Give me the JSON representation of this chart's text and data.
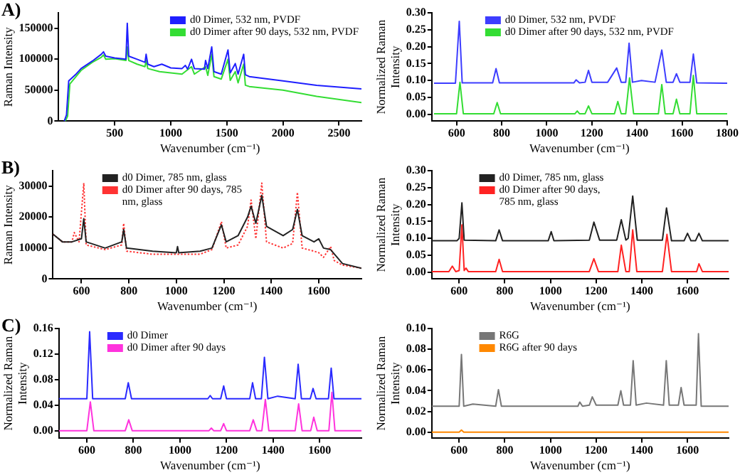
{
  "chart_data": [
    {
      "type": "line",
      "annotations": [
        "A)"
      ],
      "xlabel": "Wavenumber (cm⁻¹)",
      "ylabel": "Raman Intensity",
      "xlim": [
        0,
        2700
      ],
      "xticks": [
        500,
        1000,
        1500,
        2000,
        2500
      ],
      "ylim": [
        0,
        175000
      ],
      "yticks": [
        0,
        50000,
        100000,
        150000
      ],
      "legend": "top right",
      "marker": "none",
      "series": [
        {
          "name": "d0 Dimer, 532 nm, PVDF",
          "color": "#1f1fff",
          "x": [
            50,
            70,
            90,
            150,
            200,
            300,
            380,
            400,
            420,
            500,
            600,
            612,
            625,
            700,
            770,
            780,
            795,
            850,
            920,
            1000,
            1100,
            1130,
            1150,
            1185,
            1210,
            1300,
            1310,
            1330,
            1365,
            1385,
            1450,
            1510,
            1530,
            1575,
            1600,
            1650,
            1665,
            1700,
            2000,
            2300,
            2700
          ],
          "values": [
            0,
            10000,
            65000,
            75000,
            85000,
            97000,
            108000,
            112000,
            105000,
            102000,
            100000,
            158000,
            105000,
            100000,
            95000,
            108000,
            92000,
            88000,
            92000,
            86000,
            85000,
            90000,
            84000,
            100000,
            85000,
            84000,
            98000,
            85000,
            120000,
            80000,
            76000,
            115000,
            78000,
            93000,
            76000,
            108000,
            75000,
            72000,
            65000,
            58000,
            52000
          ]
        },
        {
          "name": "d0 Dimer after 90 days, 532 nm, PVDF",
          "color": "#33dd33",
          "x": [
            60,
            80,
            100,
            150,
            200,
            300,
            380,
            400,
            420,
            500,
            600,
            612,
            625,
            700,
            770,
            780,
            795,
            900,
            1000,
            1100,
            1185,
            1210,
            1310,
            1330,
            1365,
            1385,
            1450,
            1510,
            1530,
            1575,
            1600,
            1650,
            1665,
            1700,
            2000,
            2300,
            2700
          ],
          "values": [
            0,
            8000,
            60000,
            71000,
            82000,
            95000,
            103000,
            107000,
            100000,
            101000,
            98000,
            120000,
            98000,
            92000,
            88000,
            98000,
            85000,
            80000,
            78000,
            76000,
            88000,
            76000,
            88000,
            74000,
            108000,
            72000,
            68000,
            100000,
            66000,
            80000,
            62000,
            92000,
            58000,
            56000,
            50000,
            40000,
            30000
          ]
        }
      ]
    },
    {
      "type": "line",
      "xlabel": "Wavenumber (cm⁻¹)",
      "ylabel": "Normalized Raman Intensity",
      "xlim": [
        490,
        1800
      ],
      "xticks": [
        600,
        800,
        1000,
        1200,
        1400,
        1600,
        1800
      ],
      "ylim": [
        -0.02,
        0.3
      ],
      "yticks": [
        {
          "value": 0,
          "label": "0.00"
        },
        {
          "value": 0.05,
          "label": "0.05"
        },
        {
          "value": 0.1,
          "label": "0.10"
        },
        {
          "value": 0.15,
          "label": "0.15"
        },
        {
          "value": 0.2,
          "label": "0.20"
        },
        {
          "value": 0.25,
          "label": "0.25"
        },
        {
          "value": 0.3,
          "label": "0.30"
        }
      ],
      "legend": "top",
      "marker": "none",
      "series": [
        {
          "name": "d0 Dimer, 532 nm, PVDF",
          "color": "#3d3dff",
          "x": [
            500,
            595,
            612,
            625,
            760,
            775,
            790,
            1120,
            1130,
            1145,
            1170,
            1185,
            1200,
            1270,
            1310,
            1330,
            1350,
            1365,
            1380,
            1420,
            1480,
            1510,
            1530,
            1560,
            1575,
            1590,
            1635,
            1650,
            1665,
            1800
          ],
          "values": [
            0.092,
            0.092,
            0.275,
            0.093,
            0.093,
            0.135,
            0.093,
            0.093,
            0.102,
            0.093,
            0.095,
            0.13,
            0.095,
            0.095,
            0.137,
            0.095,
            0.095,
            0.21,
            0.095,
            0.1,
            0.095,
            0.19,
            0.095,
            0.095,
            0.12,
            0.095,
            0.095,
            0.178,
            0.093,
            0.092
          ]
        },
        {
          "name": "d0 Dimer after 90 days, 532 nm, PVDF",
          "color": "#33dd33",
          "x": [
            500,
            600,
            615,
            630,
            765,
            780,
            795,
            1125,
            1135,
            1145,
            1170,
            1185,
            1200,
            1300,
            1315,
            1330,
            1350,
            1367,
            1385,
            1495,
            1510,
            1525,
            1560,
            1575,
            1590,
            1635,
            1650,
            1665,
            1800
          ],
          "values": [
            0.002,
            0.002,
            0.095,
            0.002,
            0.002,
            0.035,
            0.002,
            0.002,
            0.01,
            0.002,
            0.002,
            0.025,
            0.002,
            0.002,
            0.038,
            0.002,
            0.002,
            0.108,
            0.002,
            0.002,
            0.088,
            0.002,
            0.002,
            0.045,
            0.002,
            0.002,
            0.115,
            0.002,
            0.002
          ]
        }
      ]
    },
    {
      "type": "line",
      "annotations": [
        "B)"
      ],
      "xlabel": "Wavenumber (cm⁻¹)",
      "ylabel": "Raman Intensity",
      "xlim": [
        480,
        1780
      ],
      "xticks": [
        600,
        800,
        1000,
        1200,
        1400,
        1600
      ],
      "ylim": [
        0,
        35000
      ],
      "yticks": [
        0,
        10000,
        20000,
        30000
      ],
      "legend": "top left",
      "marker": "none",
      "series": [
        {
          "name": "d0 Dimer, 785 nm, glass",
          "color": "#222222",
          "x": [
            480,
            520,
            560,
            600,
            610,
            620,
            700,
            770,
            778,
            790,
            900,
            1000,
            1005,
            1010,
            1100,
            1150,
            1190,
            1210,
            1260,
            1300,
            1315,
            1335,
            1360,
            1380,
            1450,
            1490,
            1510,
            1530,
            1580,
            1600,
            1620,
            1650,
            1700,
            1780
          ],
          "values": [
            14500,
            12000,
            12000,
            13000,
            19500,
            12000,
            10000,
            12000,
            16000,
            10000,
            9000,
            8500,
            10500,
            8500,
            9000,
            10000,
            17500,
            12000,
            14000,
            20000,
            23500,
            18000,
            27000,
            17000,
            14000,
            16000,
            22500,
            14000,
            12000,
            13000,
            10000,
            9500,
            5000,
            3500
          ]
        },
        {
          "name": "d0 Dimer after 90 days, 785 nm, glass",
          "color": "#ff3333",
          "line_style": "dotted",
          "x": [
            480,
            520,
            560,
            570,
            590,
            610,
            620,
            700,
            770,
            778,
            790,
            900,
            1000,
            1100,
            1150,
            1190,
            1210,
            1260,
            1300,
            1315,
            1335,
            1360,
            1380,
            1450,
            1490,
            1510,
            1530,
            1580,
            1600,
            1620,
            1650,
            1665,
            1700,
            1780
          ],
          "values": [
            14500,
            12000,
            12000,
            15000,
            12000,
            31000,
            11000,
            9500,
            11000,
            18000,
            9000,
            8000,
            8000,
            8000,
            9500,
            18500,
            10000,
            11000,
            17000,
            25500,
            13000,
            31000,
            12000,
            10000,
            11500,
            28000,
            10000,
            9000,
            8500,
            7000,
            10500,
            6000,
            4500,
            3500
          ]
        }
      ]
    },
    {
      "type": "line",
      "xlabel": "Wavenumber (cm⁻¹)",
      "ylabel": "Normalized Raman Intensity",
      "xlim": [
        480,
        1780
      ],
      "xticks": [
        600,
        800,
        1000,
        1200,
        1400,
        1600
      ],
      "ylim": [
        -0.02,
        0.3
      ],
      "yticks": [
        {
          "value": 0,
          "label": "0.00"
        },
        {
          "value": 0.05,
          "label": "0.05"
        },
        {
          "value": 0.1,
          "label": "0.10"
        },
        {
          "value": 0.15,
          "label": "0.15"
        },
        {
          "value": 0.2,
          "label": "0.20"
        },
        {
          "value": 0.25,
          "label": "0.25"
        },
        {
          "value": 0.3,
          "label": "0.30"
        }
      ],
      "legend": "top left",
      "marker": "none",
      "series": [
        {
          "name": "d0 Dimer, 785 nm, glass",
          "color": "#222222",
          "x": [
            480,
            590,
            600,
            612,
            622,
            760,
            775,
            790,
            990,
            1003,
            1015,
            1170,
            1190,
            1215,
            1290,
            1310,
            1330,
            1340,
            1360,
            1380,
            1490,
            1508,
            1530,
            1585,
            1600,
            1615,
            1635,
            1650,
            1665,
            1780
          ],
          "values": [
            0.093,
            0.093,
            0.1,
            0.205,
            0.095,
            0.093,
            0.125,
            0.093,
            0.093,
            0.12,
            0.093,
            0.095,
            0.148,
            0.095,
            0.095,
            0.155,
            0.095,
            0.1,
            0.225,
            0.095,
            0.095,
            0.19,
            0.093,
            0.093,
            0.115,
            0.093,
            0.093,
            0.115,
            0.093,
            0.093
          ]
        },
        {
          "name": "d0 Dimer after 90 days, 785 nm, glass",
          "color": "#ff2222",
          "x": [
            480,
            555,
            570,
            585,
            600,
            612,
            622,
            630,
            640,
            760,
            775,
            790,
            1170,
            1190,
            1210,
            1295,
            1310,
            1330,
            1345,
            1360,
            1378,
            1490,
            1510,
            1530,
            1640,
            1650,
            1665,
            1780
          ],
          "values": [
            0.002,
            0.002,
            0.018,
            0.002,
            0.005,
            0.14,
            0.005,
            0.012,
            0.002,
            0.002,
            0.038,
            0.002,
            0.002,
            0.04,
            0.002,
            0.002,
            0.08,
            0.002,
            0.002,
            0.125,
            0.002,
            0.002,
            0.112,
            0.002,
            0.002,
            0.025,
            0.002,
            0.002
          ]
        }
      ]
    },
    {
      "type": "line",
      "annotations": [
        "C)"
      ],
      "xlabel": "Wavenumber (cm⁻¹)",
      "ylabel": "Normalized Raman Intensity",
      "xlim": [
        480,
        1780
      ],
      "xticks": [
        600,
        800,
        1000,
        1200,
        1400,
        1600
      ],
      "ylim": [
        -0.012,
        0.16
      ],
      "yticks": [
        {
          "value": 0,
          "label": "0.00"
        },
        {
          "value": 0.04,
          "label": "0.04"
        },
        {
          "value": 0.08,
          "label": "0.08"
        },
        {
          "value": 0.12,
          "label": "0.12"
        },
        {
          "value": 0.16,
          "label": "0.16"
        }
      ],
      "legend": "top left",
      "marker": "none",
      "series": [
        {
          "name": "d0 Dimer",
          "color": "#2a2aff",
          "x": [
            480,
            600,
            612,
            625,
            765,
            778,
            792,
            1120,
            1130,
            1140,
            1175,
            1188,
            1200,
            1300,
            1312,
            1325,
            1350,
            1363,
            1378,
            1420,
            1495,
            1508,
            1522,
            1560,
            1572,
            1585,
            1638,
            1650,
            1662,
            1780
          ],
          "values": [
            0.05,
            0.05,
            0.155,
            0.05,
            0.05,
            0.075,
            0.05,
            0.05,
            0.055,
            0.05,
            0.05,
            0.07,
            0.05,
            0.05,
            0.075,
            0.05,
            0.05,
            0.115,
            0.05,
            0.054,
            0.05,
            0.104,
            0.05,
            0.05,
            0.066,
            0.05,
            0.05,
            0.098,
            0.05,
            0.05
          ]
        },
        {
          "name": "d0 Dimer after 90 days",
          "color": "#ff33dd",
          "x": [
            480,
            600,
            615,
            630,
            765,
            780,
            795,
            1125,
            1135,
            1145,
            1175,
            1188,
            1200,
            1300,
            1315,
            1330,
            1352,
            1367,
            1382,
            1495,
            1510,
            1525,
            1562,
            1575,
            1590,
            1640,
            1653,
            1666,
            1780
          ],
          "values": [
            0,
            0,
            0.045,
            0,
            0,
            0.017,
            0,
            0,
            0.004,
            0,
            0,
            0.011,
            0,
            0,
            0.017,
            0,
            0,
            0.049,
            0,
            0,
            0.042,
            0,
            0,
            0.021,
            0,
            0,
            0.06,
            0,
            0
          ]
        }
      ]
    },
    {
      "type": "line",
      "xlabel": "Wavenumber (cm⁻¹)",
      "ylabel": "Normalized Raman Intensity",
      "xlim": [
        480,
        1780
      ],
      "xticks": [
        600,
        800,
        1000,
        1200,
        1400,
        1600
      ],
      "ylim": [
        -0.006,
        0.1
      ],
      "yticks": [
        {
          "value": 0,
          "label": "0.00"
        },
        {
          "value": 0.02,
          "label": "0.02"
        },
        {
          "value": 0.04,
          "label": "0.04"
        },
        {
          "value": 0.06,
          "label": "0.06"
        },
        {
          "value": 0.08,
          "label": "0.08"
        },
        {
          "value": 0.1,
          "label": "0.10"
        }
      ],
      "legend": "top left",
      "marker": "none",
      "series": [
        {
          "name": "R6G",
          "color": "#777777",
          "x": [
            480,
            600,
            610,
            620,
            660,
            760,
            772,
            785,
            1120,
            1128,
            1140,
            1170,
            1183,
            1200,
            1295,
            1308,
            1320,
            1350,
            1362,
            1375,
            1420,
            1495,
            1507,
            1520,
            1560,
            1572,
            1585,
            1638,
            1648,
            1660,
            1780
          ],
          "values": [
            0.025,
            0.025,
            0.075,
            0.025,
            0.027,
            0.025,
            0.041,
            0.025,
            0.025,
            0.029,
            0.025,
            0.026,
            0.034,
            0.026,
            0.026,
            0.04,
            0.026,
            0.026,
            0.069,
            0.026,
            0.028,
            0.026,
            0.069,
            0.026,
            0.026,
            0.043,
            0.026,
            0.026,
            0.095,
            0.025,
            0.025
          ]
        },
        {
          "name": "R6G after 90 days",
          "color": "#ff8800",
          "x": [
            480,
            600,
            610,
            620,
            1780
          ],
          "values": [
            0,
            0,
            0.002,
            0,
            0
          ]
        }
      ]
    }
  ]
}
